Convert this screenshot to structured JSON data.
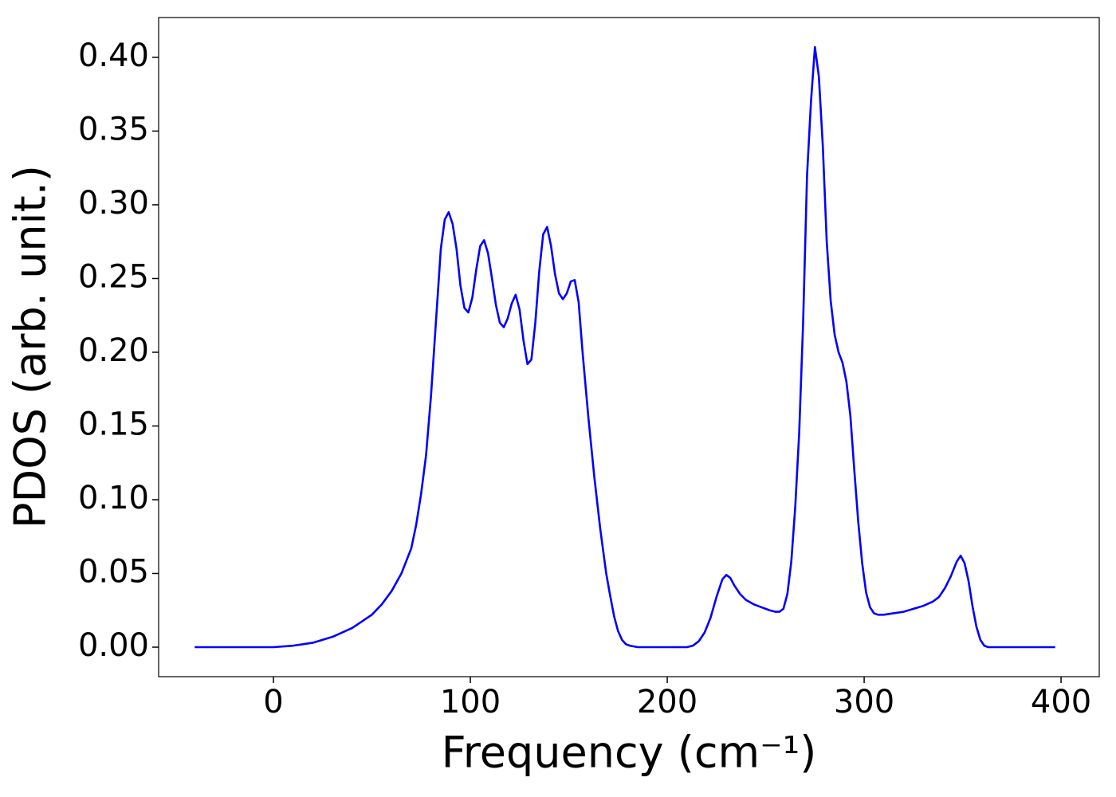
{
  "chart_data": {
    "type": "line",
    "xlabel": "Frequency (cm⁻¹)",
    "ylabel": "PDOS (arb. unit.)",
    "color": "#0000ff",
    "x": [
      -40,
      -20,
      0,
      10,
      20,
      30,
      40,
      50,
      55,
      60,
      65,
      70,
      72.5,
      75,
      77.5,
      80,
      82.5,
      85,
      87,
      89,
      91,
      93,
      95,
      97,
      99,
      101,
      103,
      105,
      107,
      109,
      111,
      113,
      115,
      117,
      119,
      121,
      123,
      125,
      127,
      129,
      131,
      133,
      135,
      137,
      139,
      141,
      143,
      145,
      147,
      149,
      151,
      153,
      155,
      157,
      160,
      163,
      166,
      169,
      171,
      173,
      175,
      177,
      179,
      181,
      185,
      200,
      210,
      213,
      216,
      219,
      222,
      225,
      228,
      230,
      232,
      234,
      237,
      240,
      244,
      248,
      252,
      255,
      257,
      259,
      261,
      263,
      265,
      267,
      269,
      271,
      273,
      275,
      277,
      279,
      281,
      283,
      285,
      287,
      289,
      291,
      293,
      295,
      297,
      299,
      301,
      303,
      305,
      307,
      310,
      315,
      320,
      325,
      330,
      335,
      338,
      341,
      344,
      347,
      349,
      351,
      353,
      355,
      357,
      359,
      361,
      363,
      370,
      397
    ],
    "values": [
      0,
      0,
      0,
      0.001,
      0.003,
      0.007,
      0.013,
      0.022,
      0.029,
      0.038,
      0.05,
      0.067,
      0.083,
      0.104,
      0.13,
      0.17,
      0.22,
      0.27,
      0.29,
      0.295,
      0.287,
      0.27,
      0.245,
      0.23,
      0.227,
      0.237,
      0.256,
      0.272,
      0.276,
      0.267,
      0.25,
      0.232,
      0.22,
      0.217,
      0.223,
      0.233,
      0.239,
      0.229,
      0.208,
      0.192,
      0.195,
      0.22,
      0.255,
      0.28,
      0.285,
      0.272,
      0.253,
      0.24,
      0.236,
      0.24,
      0.248,
      0.249,
      0.234,
      0.2,
      0.155,
      0.115,
      0.08,
      0.05,
      0.035,
      0.021,
      0.011,
      0.005,
      0.002,
      0.001,
      0,
      0,
      0,
      0.001,
      0.004,
      0.01,
      0.02,
      0.034,
      0.046,
      0.049,
      0.047,
      0.042,
      0.036,
      0.032,
      0.029,
      0.027,
      0.025,
      0.024,
      0.024,
      0.026,
      0.036,
      0.058,
      0.095,
      0.145,
      0.22,
      0.32,
      0.37,
      0.407,
      0.387,
      0.34,
      0.275,
      0.235,
      0.212,
      0.2,
      0.193,
      0.18,
      0.157,
      0.12,
      0.085,
      0.057,
      0.037,
      0.027,
      0.023,
      0.022,
      0.022,
      0.023,
      0.024,
      0.026,
      0.028,
      0.031,
      0.034,
      0.04,
      0.048,
      0.058,
      0.062,
      0.057,
      0.045,
      0.028,
      0.014,
      0.005,
      0.001,
      0,
      0,
      0
    ],
    "xlim": [
      -58.3,
      419.4
    ],
    "ylim": [
      -0.02,
      0.427
    ],
    "xticks": [
      0,
      100,
      200,
      300,
      400
    ],
    "yticks": [
      {
        "value": 0,
        "label": "0.00"
      },
      0.05,
      {
        "value": 0.1,
        "label": "0.10"
      },
      0.15,
      {
        "value": 0.2,
        "label": "0.20"
      },
      0.25,
      {
        "value": 0.3,
        "label": "0.30"
      },
      0.35,
      {
        "value": 0.4,
        "label": "0.40"
      }
    ]
  }
}
